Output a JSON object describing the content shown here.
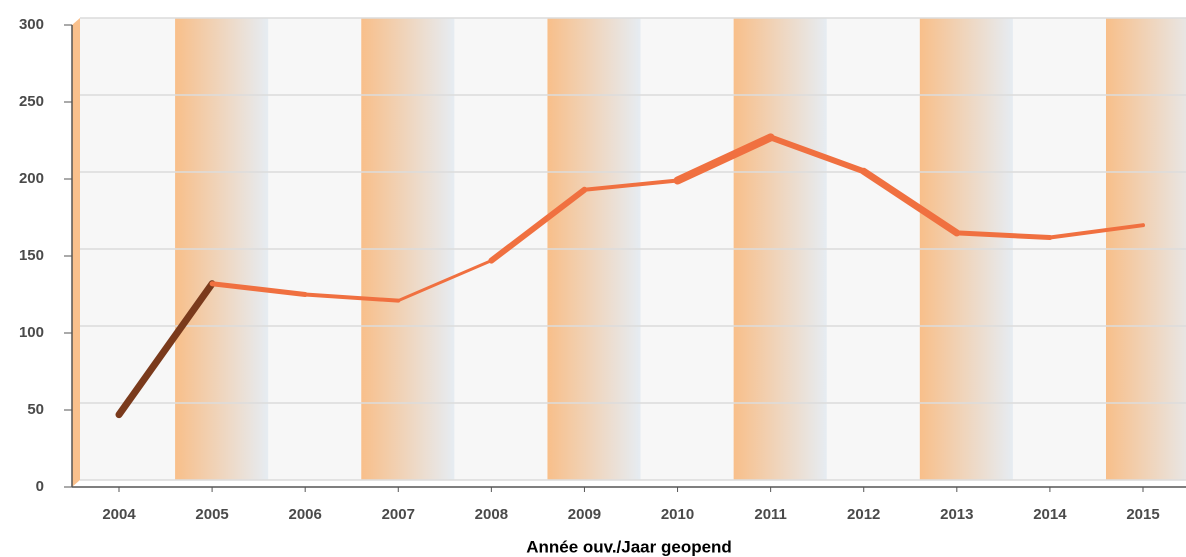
{
  "chart_data": {
    "type": "line",
    "x_label": "Année ouv./Jaar geopend",
    "categories": [
      "2004",
      "2005",
      "2006",
      "2007",
      "2008",
      "2009",
      "2010",
      "2011",
      "2012",
      "2013",
      "2014",
      "2015"
    ],
    "series": [
      {
        "color": "#f07040",
        "values": [
          47,
          132,
          125,
          121,
          147,
          193,
          199,
          227,
          205,
          165,
          162,
          170
        ]
      }
    ],
    "ylim": [
      0,
      300
    ],
    "yticks": [
      0,
      50,
      100,
      150,
      200,
      250,
      300
    ],
    "grid": true
  }
}
